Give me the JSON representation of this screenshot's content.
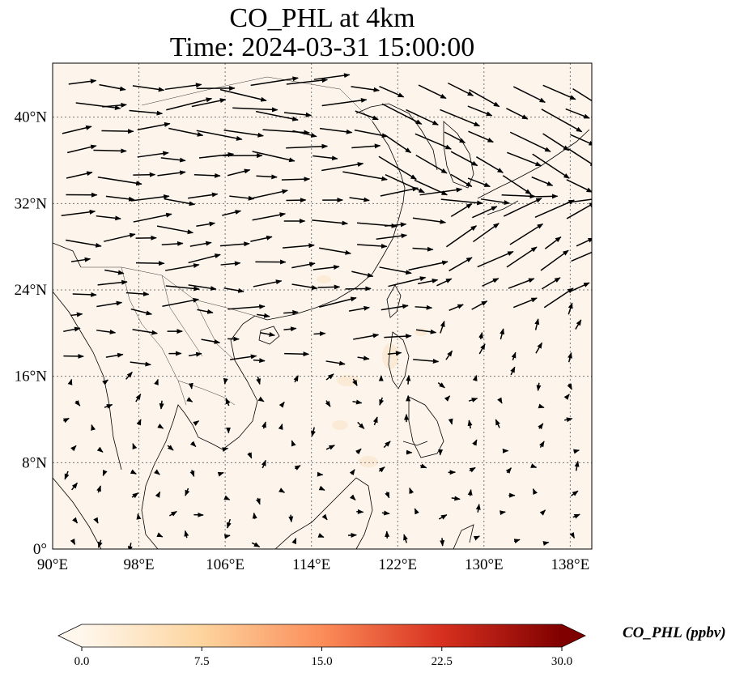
{
  "title": {
    "line1": "CO_PHL at 4km",
    "line2": "Time: 2024-03-31 15:00:00"
  },
  "map": {
    "lon_range": [
      90,
      140
    ],
    "lat_range": [
      0,
      45
    ],
    "lon_ticks": [
      {
        "value": 90,
        "label": "90°E"
      },
      {
        "value": 98,
        "label": "98°E"
      },
      {
        "value": 106,
        "label": "106°E"
      },
      {
        "value": 114,
        "label": "114°E"
      },
      {
        "value": 122,
        "label": "122°E"
      },
      {
        "value": 130,
        "label": "130°E"
      },
      {
        "value": 138,
        "label": "138°E"
      }
    ],
    "lat_ticks": [
      {
        "value": 0,
        "label": "0°"
      },
      {
        "value": 8,
        "label": "8°N"
      },
      {
        "value": 16,
        "label": "16°N"
      },
      {
        "value": 24,
        "label": "24°N"
      },
      {
        "value": 32,
        "label": "32°N"
      },
      {
        "value": 40,
        "label": "40°N"
      }
    ],
    "gridlines": true,
    "background_fill": "#fdf5eb",
    "vector_field": "wind arrows; westerlies strongest north of 20°N, weak and variable south of 16°N"
  },
  "colorbar": {
    "label": "CO_PHL (ppbv)",
    "range": [
      0.0,
      30.0
    ],
    "extend": "both",
    "colormap": "OrRd",
    "ticks": [
      {
        "value": 0.0,
        "label": "0.0"
      },
      {
        "value": 7.5,
        "label": "7.5"
      },
      {
        "value": 15.0,
        "label": "15.0"
      },
      {
        "value": 22.5,
        "label": "22.5"
      },
      {
        "value": 30.0,
        "label": "30.0"
      }
    ],
    "colors": [
      "#fff7ec",
      "#fdd49e",
      "#fc8d59",
      "#d7301f",
      "#7f0000"
    ]
  }
}
